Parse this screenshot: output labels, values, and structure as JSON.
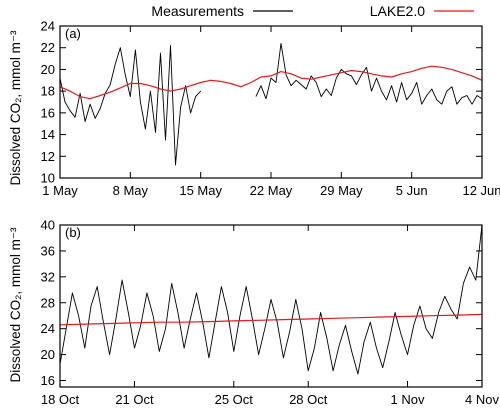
{
  "legend": {
    "items": [
      {
        "label": "Measurements",
        "color": "#000000"
      },
      {
        "label": "LAKE2.0",
        "color": "#e41a1c"
      }
    ]
  },
  "chart_data": [
    {
      "type": "line",
      "panel_label": "(a)",
      "ylabel": "Dissolved CO₂, mmol m⁻³",
      "xlabel": "",
      "x_unit": "day",
      "xlim": [
        0,
        42
      ],
      "ylim": [
        10,
        24
      ],
      "x_ticks": [
        {
          "x": 0,
          "label": "1 May"
        },
        {
          "x": 7,
          "label": "8 May"
        },
        {
          "x": 14,
          "label": "15 May"
        },
        {
          "x": 21,
          "label": "22 May"
        },
        {
          "x": 28,
          "label": "29 May"
        },
        {
          "x": 35,
          "label": "5 Jun"
        },
        {
          "x": 42,
          "label": "12 Jun"
        }
      ],
      "y_ticks": [
        10,
        12,
        14,
        16,
        18,
        20,
        22,
        24
      ],
      "series": [
        {
          "name": "Measurements",
          "color": "#000000",
          "x": [
            0,
            0.5,
            1,
            1.5,
            2,
            2.5,
            3,
            3.5,
            4,
            4.5,
            5,
            5.5,
            6,
            6.5,
            7,
            7.5,
            8,
            8.5,
            9,
            9.5,
            10,
            10.5,
            11,
            11.5,
            12,
            12.5,
            13,
            13.5,
            14,
            14.5,
            15,
            15.5,
            16,
            16.5,
            17,
            17.5,
            18,
            18.5,
            19,
            19.5,
            20,
            20.5,
            21,
            21.5,
            22,
            22.5,
            23,
            23.5,
            24,
            24.5,
            25,
            25.5,
            26,
            26.5,
            27,
            27.5,
            28,
            28.5,
            29,
            29.5,
            30,
            30.5,
            31,
            31.5,
            32,
            32.5,
            33,
            33.5,
            34,
            34.5,
            35,
            35.5,
            36,
            36.5,
            37,
            37.5,
            38,
            38.5,
            39,
            39.5,
            40,
            40.5,
            41,
            41.5,
            42
          ],
          "values": [
            19.2,
            17.0,
            16.2,
            15.6,
            17.8,
            15.2,
            16.8,
            15.5,
            16.4,
            17.8,
            18.6,
            20.5,
            22.0,
            19.5,
            17.5,
            21.8,
            17.0,
            14.5,
            18.0,
            14.2,
            21.5,
            13.5,
            22.2,
            11.2,
            16.5,
            18.5,
            16.0,
            17.5,
            18.0,
            null,
            null,
            null,
            null,
            null,
            null,
            null,
            null,
            null,
            null,
            17.5,
            18.5,
            17.3,
            19.2,
            18.8,
            22.4,
            19.5,
            18.5,
            19.0,
            18.6,
            18.2,
            19.4,
            18.8,
            17.5,
            18.2,
            17.6,
            19.2,
            20.0,
            19.6,
            19.4,
            18.6,
            19.5,
            20.2,
            18.0,
            19.2,
            18.0,
            17.2,
            18.5,
            17.0,
            18.8,
            17.2,
            17.8,
            18.8,
            16.8,
            17.6,
            18.2,
            17.2,
            16.8,
            18.0,
            18.4,
            16.8,
            17.4,
            17.6,
            16.8,
            17.6,
            17.3
          ]
        },
        {
          "name": "LAKE2.0",
          "color": "#e41a1c",
          "x": [
            0,
            1,
            2,
            3,
            4,
            5,
            6,
            7,
            8,
            9,
            10,
            11,
            12,
            13,
            14,
            15,
            16,
            17,
            18,
            19,
            20,
            21,
            22,
            23,
            24,
            25,
            26,
            27,
            28,
            29,
            30,
            31,
            32,
            33,
            34,
            35,
            36,
            37,
            38,
            39,
            40,
            41,
            42
          ],
          "values": [
            18.4,
            18.0,
            17.5,
            17.3,
            17.6,
            17.9,
            18.3,
            18.7,
            18.7,
            18.5,
            18.2,
            18.0,
            18.2,
            18.5,
            18.8,
            19.0,
            18.9,
            18.7,
            18.4,
            18.8,
            19.3,
            19.4,
            19.8,
            19.6,
            19.2,
            19.1,
            19.3,
            19.5,
            19.7,
            19.9,
            19.8,
            19.6,
            19.4,
            19.3,
            19.6,
            19.8,
            20.1,
            20.3,
            20.2,
            20.0,
            19.7,
            19.4,
            19.0
          ]
        }
      ]
    },
    {
      "type": "line",
      "panel_label": "(b)",
      "ylabel": "Dissolved CO₂, mmol m⁻³",
      "xlabel": "",
      "x_unit": "day",
      "xlim": [
        0,
        17
      ],
      "ylim": [
        15,
        40
      ],
      "x_ticks": [
        {
          "x": 0,
          "label": "18 Oct"
        },
        {
          "x": 3,
          "label": "21 Oct"
        },
        {
          "x": 7,
          "label": "25 Oct"
        },
        {
          "x": 10,
          "label": "28 Oct"
        },
        {
          "x": 14,
          "label": "1 Nov"
        },
        {
          "x": 17,
          "label": "4 Nov"
        }
      ],
      "y_ticks": [
        16,
        20,
        24,
        28,
        32,
        36,
        40
      ],
      "series": [
        {
          "name": "Measurements",
          "color": "#000000",
          "x": [
            0,
            0.25,
            0.5,
            0.75,
            1,
            1.25,
            1.5,
            1.75,
            2,
            2.25,
            2.5,
            2.75,
            3,
            3.25,
            3.5,
            3.75,
            4,
            4.25,
            4.5,
            4.75,
            5,
            5.25,
            5.5,
            5.75,
            6,
            6.25,
            6.5,
            6.75,
            7,
            7.25,
            7.5,
            7.75,
            8,
            8.25,
            8.5,
            8.75,
            9,
            9.25,
            9.5,
            9.75,
            10,
            10.25,
            10.5,
            10.75,
            11,
            11.25,
            11.5,
            11.75,
            12,
            12.25,
            12.5,
            12.75,
            13,
            13.25,
            13.5,
            13.75,
            14,
            14.25,
            14.5,
            14.75,
            15,
            15.25,
            15.5,
            15.75,
            16,
            16.25,
            16.5,
            16.75,
            17
          ],
          "values": [
            18.5,
            24.0,
            29.5,
            26.0,
            21.0,
            27.5,
            30.5,
            25.0,
            20.0,
            25.5,
            31.5,
            26.5,
            21.0,
            24.5,
            29.5,
            26.0,
            20.5,
            24.0,
            31.0,
            26.5,
            21.0,
            25.5,
            29.5,
            25.0,
            19.5,
            25.0,
            30.5,
            26.5,
            20.5,
            26.0,
            30.5,
            25.5,
            20.0,
            24.0,
            28.5,
            25.0,
            19.5,
            23.5,
            28.5,
            24.0,
            17.5,
            21.0,
            26.5,
            22.5,
            17.5,
            21.5,
            24.5,
            20.5,
            17.0,
            22.0,
            25.0,
            21.0,
            18.0,
            22.0,
            26.5,
            23.0,
            20.0,
            24.5,
            27.5,
            24.0,
            22.5,
            26.5,
            29.0,
            27.0,
            25.5,
            31.0,
            33.5,
            31.5,
            40.0
          ]
        },
        {
          "name": "LAKE2.0",
          "color": "#e41a1c",
          "x": [
            0,
            1,
            2,
            3,
            4,
            5,
            6,
            7,
            8,
            9,
            10,
            11,
            12,
            13,
            14,
            15,
            16,
            17
          ],
          "values": [
            24.6,
            24.7,
            24.8,
            24.9,
            25.0,
            25.0,
            25.1,
            25.2,
            25.3,
            25.4,
            25.5,
            25.6,
            25.7,
            25.8,
            25.9,
            26.0,
            26.1,
            26.2
          ]
        }
      ]
    }
  ]
}
